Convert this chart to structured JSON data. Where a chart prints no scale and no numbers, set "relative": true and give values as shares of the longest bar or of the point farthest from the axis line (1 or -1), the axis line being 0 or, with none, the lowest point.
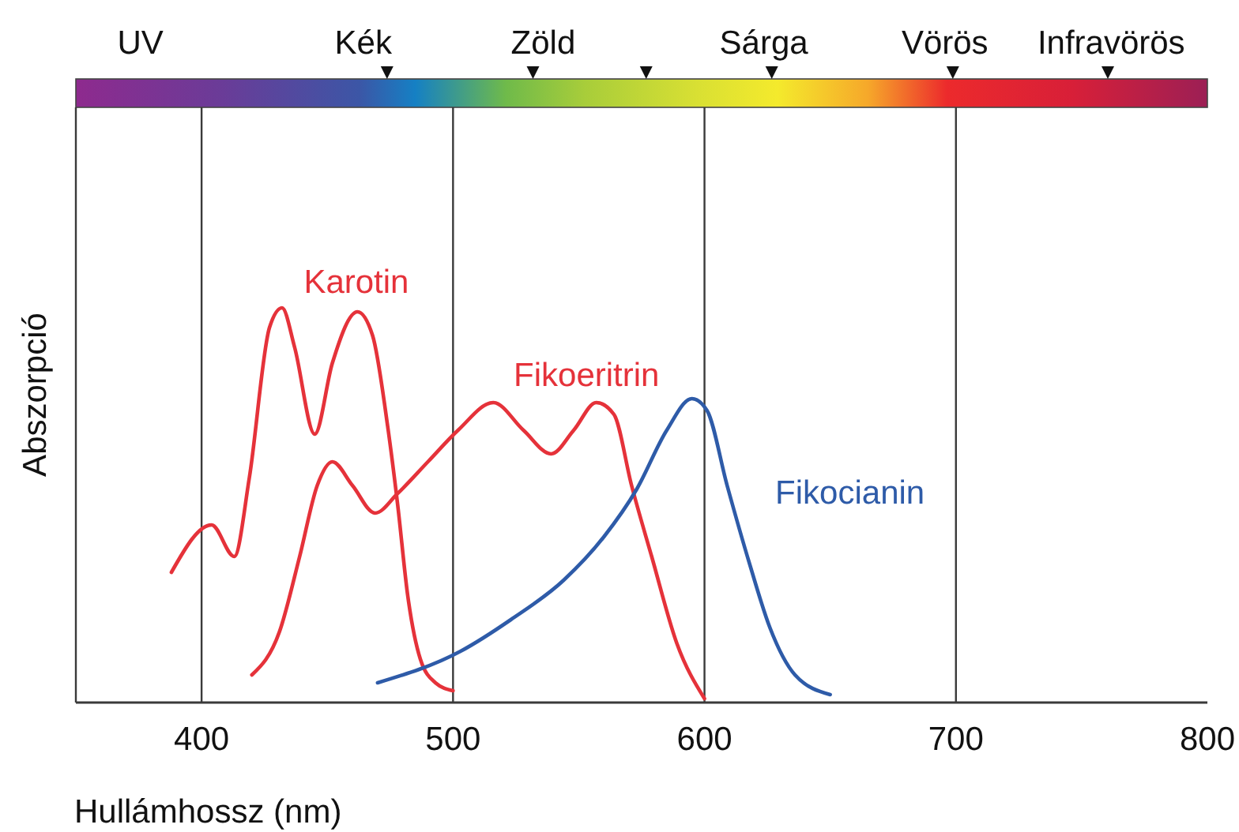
{
  "chart_data": {
    "type": "line",
    "relative": true,
    "xlabel": "Hullámhossz (nm)",
    "ylabel": "Abszorpció",
    "xlim": [
      350,
      800
    ],
    "xticks": [
      400,
      500,
      600,
      700,
      800
    ],
    "grid": "x",
    "marker": "none",
    "line_style": "solid",
    "annotations": [
      "UV",
      "Kék",
      "Zöld",
      "Sárga",
      "Vörös",
      "Infravörös"
    ],
    "series": [
      {
        "name": "Karotin",
        "color": "#e5323a",
        "x": [
          388,
          404,
          413,
          419,
          427,
          432,
          437,
          445,
          452,
          462,
          468,
          474,
          478,
          482,
          487,
          493,
          500
        ],
        "values": [
          0.33,
          0.45,
          0.37,
          0.57,
          0.95,
          1.0,
          0.9,
          0.68,
          0.86,
          0.99,
          0.93,
          0.7,
          0.5,
          0.27,
          0.11,
          0.05,
          0.03
        ]
      },
      {
        "name": "Fikoeritrin",
        "color": "#e5323a",
        "x": [
          420,
          431,
          439,
          446,
          452,
          460,
          469,
          478,
          490,
          502,
          516,
          528,
          539,
          548,
          557,
          564,
          571,
          579,
          589,
          600
        ],
        "values": [
          0.07,
          0.18,
          0.37,
          0.55,
          0.61,
          0.55,
          0.48,
          0.53,
          0.61,
          0.69,
          0.76,
          0.69,
          0.63,
          0.69,
          0.76,
          0.73,
          0.55,
          0.37,
          0.15,
          0.01
        ]
      },
      {
        "name": "Fikocianin",
        "color": "#2e5ba8",
        "x": [
          470,
          503,
          523,
          544,
          560,
          573,
          585,
          595,
          601,
          609,
          618,
          626,
          636,
          650
        ],
        "values": [
          0.05,
          0.13,
          0.21,
          0.31,
          0.42,
          0.54,
          0.69,
          0.77,
          0.74,
          0.55,
          0.35,
          0.19,
          0.07,
          0.02
        ]
      }
    ]
  }
}
